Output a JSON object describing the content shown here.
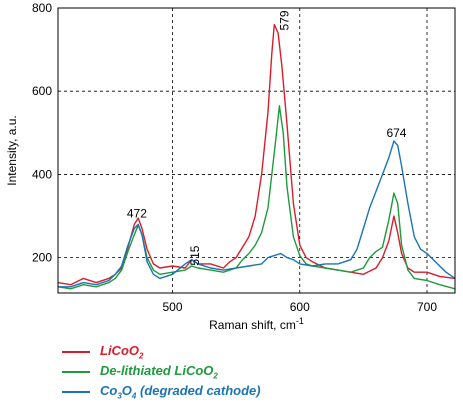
{
  "chart_data": {
    "type": "line",
    "xlabel": "Raman shift, cm",
    "xlabel_superscript": "-1",
    "ylabel": "Intensity, a.u.",
    "xlim": [
      410,
      722
    ],
    "ylim": [
      115,
      800
    ],
    "xticks": [
      500,
      600,
      700
    ],
    "yticks": [
      200,
      400,
      600,
      800
    ],
    "grid": "dashed",
    "legend_position": "bottom",
    "peak_labels": [
      {
        "text": "472",
        "x": 472,
        "y": 296
      },
      {
        "text": "515",
        "x": 521,
        "y": 205
      },
      {
        "text": "579",
        "x": 591,
        "y": 770
      },
      {
        "text": "674",
        "x": 676,
        "y": 490
      }
    ],
    "series": [
      {
        "name_main": "LiCoO",
        "name_sub": "2",
        "name_rest": "",
        "color": "#d81e2c",
        "points": [
          [
            410,
            140
          ],
          [
            420,
            135
          ],
          [
            430,
            150
          ],
          [
            440,
            140
          ],
          [
            450,
            150
          ],
          [
            455,
            160
          ],
          [
            460,
            175
          ],
          [
            465,
            225
          ],
          [
            470,
            280
          ],
          [
            473,
            295
          ],
          [
            476,
            270
          ],
          [
            480,
            220
          ],
          [
            485,
            185
          ],
          [
            490,
            175
          ],
          [
            500,
            180
          ],
          [
            510,
            175
          ],
          [
            515,
            195
          ],
          [
            520,
            185
          ],
          [
            530,
            185
          ],
          [
            540,
            175
          ],
          [
            545,
            190
          ],
          [
            550,
            200
          ],
          [
            555,
            225
          ],
          [
            560,
            250
          ],
          [
            565,
            300
          ],
          [
            570,
            400
          ],
          [
            575,
            550
          ],
          [
            578,
            690
          ],
          [
            580,
            760
          ],
          [
            583,
            740
          ],
          [
            586,
            660
          ],
          [
            590,
            520
          ],
          [
            595,
            330
          ],
          [
            600,
            230
          ],
          [
            605,
            200
          ],
          [
            610,
            190
          ],
          [
            620,
            175
          ],
          [
            630,
            170
          ],
          [
            640,
            165
          ],
          [
            650,
            160
          ],
          [
            660,
            175
          ],
          [
            665,
            200
          ],
          [
            670,
            240
          ],
          [
            674,
            300
          ],
          [
            677,
            260
          ],
          [
            680,
            210
          ],
          [
            685,
            175
          ],
          [
            690,
            165
          ],
          [
            700,
            165
          ],
          [
            710,
            155
          ],
          [
            722,
            150
          ]
        ]
      },
      {
        "name_main": "De-lithiated LiCoO",
        "name_sub": "2",
        "name_rest": "",
        "color": "#1f9a3e",
        "points": [
          [
            410,
            130
          ],
          [
            420,
            125
          ],
          [
            430,
            135
          ],
          [
            440,
            130
          ],
          [
            450,
            140
          ],
          [
            455,
            150
          ],
          [
            460,
            170
          ],
          [
            465,
            215
          ],
          [
            470,
            255
          ],
          [
            473,
            278
          ],
          [
            476,
            255
          ],
          [
            480,
            200
          ],
          [
            485,
            170
          ],
          [
            490,
            160
          ],
          [
            500,
            165
          ],
          [
            510,
            170
          ],
          [
            515,
            180
          ],
          [
            520,
            175
          ],
          [
            530,
            170
          ],
          [
            540,
            165
          ],
          [
            550,
            175
          ],
          [
            555,
            195
          ],
          [
            560,
            210
          ],
          [
            565,
            230
          ],
          [
            570,
            260
          ],
          [
            575,
            320
          ],
          [
            578,
            400
          ],
          [
            581,
            480
          ],
          [
            584,
            565
          ],
          [
            587,
            500
          ],
          [
            590,
            370
          ],
          [
            595,
            250
          ],
          [
            600,
            205
          ],
          [
            605,
            185
          ],
          [
            610,
            180
          ],
          [
            620,
            175
          ],
          [
            630,
            170
          ],
          [
            640,
            165
          ],
          [
            650,
            175
          ],
          [
            655,
            200
          ],
          [
            660,
            215
          ],
          [
            665,
            225
          ],
          [
            670,
            290
          ],
          [
            674,
            355
          ],
          [
            677,
            330
          ],
          [
            680,
            230
          ],
          [
            685,
            170
          ],
          [
            690,
            150
          ],
          [
            700,
            145
          ],
          [
            710,
            135
          ],
          [
            722,
            125
          ]
        ]
      },
      {
        "name_main": "Co",
        "name_sub": "3",
        "name_rest": "O",
        "name_sub2": "4",
        "name_tail": " (degraded cathode)",
        "color": "#1c74b4",
        "points": [
          [
            410,
            130
          ],
          [
            420,
            130
          ],
          [
            430,
            140
          ],
          [
            440,
            135
          ],
          [
            450,
            145
          ],
          [
            455,
            160
          ],
          [
            460,
            180
          ],
          [
            465,
            230
          ],
          [
            470,
            270
          ],
          [
            473,
            280
          ],
          [
            476,
            255
          ],
          [
            480,
            190
          ],
          [
            485,
            160
          ],
          [
            490,
            150
          ],
          [
            500,
            160
          ],
          [
            510,
            185
          ],
          [
            515,
            195
          ],
          [
            520,
            185
          ],
          [
            530,
            175
          ],
          [
            540,
            170
          ],
          [
            550,
            175
          ],
          [
            560,
            180
          ],
          [
            570,
            185
          ],
          [
            575,
            200
          ],
          [
            580,
            205
          ],
          [
            585,
            210
          ],
          [
            590,
            200
          ],
          [
            595,
            195
          ],
          [
            600,
            185
          ],
          [
            610,
            180
          ],
          [
            620,
            185
          ],
          [
            630,
            185
          ],
          [
            640,
            195
          ],
          [
            645,
            220
          ],
          [
            650,
            270
          ],
          [
            655,
            320
          ],
          [
            660,
            360
          ],
          [
            665,
            400
          ],
          [
            670,
            440
          ],
          [
            674,
            480
          ],
          [
            677,
            470
          ],
          [
            680,
            420
          ],
          [
            685,
            330
          ],
          [
            690,
            250
          ],
          [
            695,
            220
          ],
          [
            700,
            210
          ],
          [
            705,
            195
          ],
          [
            710,
            180
          ],
          [
            715,
            165
          ],
          [
            722,
            150
          ]
        ]
      }
    ]
  }
}
